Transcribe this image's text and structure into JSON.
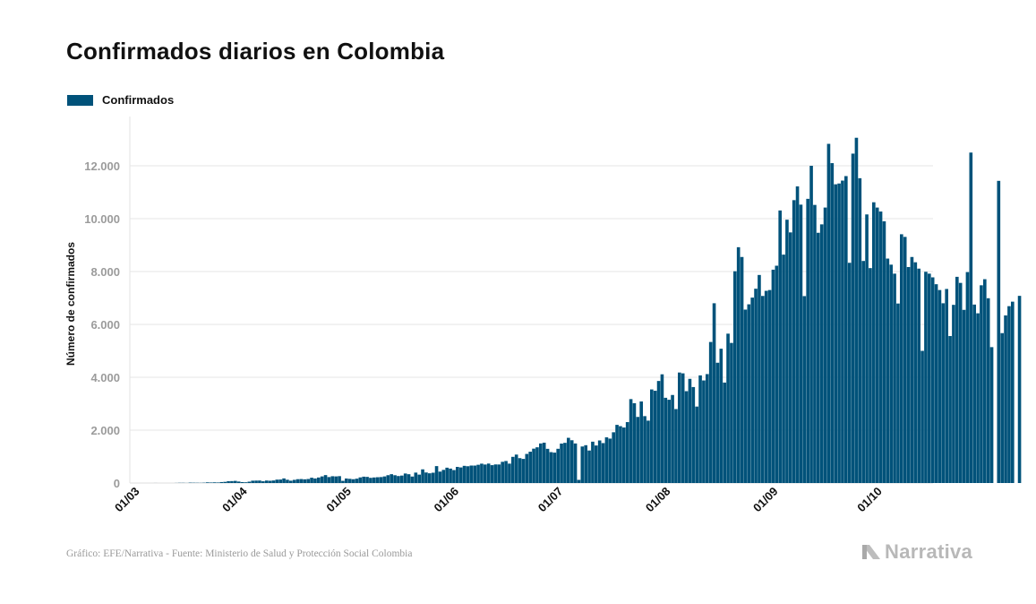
{
  "title": "Confirmados diarios en Colombia",
  "legend_label": "Confirmados",
  "footer": "Gráfico: EFE/Narrativa - Fuente: Ministerio de Salud y Protección Social Colombia",
  "brand": "Narrativa",
  "colors": {
    "bar": "#00527a",
    "grid": "#e6e6e6",
    "tick": "#9b9b9b",
    "text": "#111111"
  },
  "chart_data": {
    "type": "bar",
    "ylabel": "Número de confirmados",
    "xlabel": "",
    "ylim": [
      0,
      13500
    ],
    "y_ticks": [
      0,
      2000,
      4000,
      6000,
      8000,
      10000,
      12000
    ],
    "y_tick_labels": [
      "0",
      "2.000",
      "4.000",
      "6.000",
      "8.000",
      "10.000",
      "12.000"
    ],
    "x_ticks": [
      "01/03",
      "01/04",
      "01/05",
      "01/06",
      "01/07",
      "01/08",
      "01/09",
      "01/10"
    ],
    "series": [
      {
        "name": "Confirmados",
        "start_date": "2020-03-06",
        "values": [
          1,
          0,
          0,
          0,
          0,
          0,
          3,
          7,
          7,
          3,
          14,
          11,
          9,
          7,
          12,
          25,
          19,
          25,
          20,
          36,
          44,
          68,
          73,
          81,
          56,
          35,
          28,
          51,
          88,
          92,
          94,
          66,
          94,
          85,
          96,
          128,
          132,
          174,
          124,
          88,
          120,
          145,
          150,
          140,
          152,
          200,
          173,
          208,
          250,
          300,
          225,
          257,
          250,
          260,
          83,
          171,
          158,
          144,
          164,
          212,
          240,
          232,
          196,
          210,
          219,
          225,
          249,
          296,
          334,
          295,
          264,
          282,
          360,
          333,
          245,
          394,
          318,
          517,
          399,
          368,
          390,
          640,
          432,
          497,
          580,
          546,
          490,
          610,
          590,
          650,
          635,
          661,
          660,
          690,
          732,
          700,
          736,
          676,
          703,
          701,
          802,
          833,
          734,
          990,
          1076,
          941,
          912,
          1100,
          1185,
          1300,
          1351,
          1496,
          1526,
          1293,
          1168,
          1150,
          1295,
          1492,
          1520,
          1710,
          1618,
          1496,
          119,
          1382,
          1430,
          1230,
          1564,
          1420,
          1610,
          1510,
          1728,
          1680,
          1920,
          2200,
          2150,
          2100,
          2304,
          3174,
          3020,
          2500,
          3085,
          2530,
          2360,
          3540,
          3490,
          3860,
          4112,
          3224,
          3150,
          3330,
          2798,
          4180,
          4149,
          3474,
          3940,
          3630,
          2892,
          4072,
          3880,
          4120,
          5335,
          6800,
          4550,
          5080,
          3800,
          5650,
          5300,
          8010,
          8920,
          8550,
          6560,
          6760,
          7014,
          7350,
          7870,
          7076,
          7270,
          7300,
          8070,
          8220,
          10310,
          8640,
          9960,
          9480,
          10700,
          11220,
          10530,
          7070,
          10750,
          12000,
          10520,
          9466,
          9784,
          10420,
          12830,
          12100,
          11300,
          11330,
          11440,
          11610,
          8330,
          12460,
          13060,
          11530,
          8400,
          10160,
          8130,
          10620,
          10420,
          10270,
          9900,
          8490,
          8260,
          7920,
          6790,
          9410,
          9310,
          8170,
          8550,
          8350,
          8110,
          5000,
          7990,
          7920,
          7780,
          7520,
          7300,
          6800,
          7340,
          5560,
          6740,
          7800,
          7570,
          6550,
          7980,
          12500,
          6750,
          6420,
          7480,
          7710,
          6990,
          5140,
          0,
          11430,
          5670,
          6340,
          6690,
          6860,
          0,
          7080
        ]
      }
    ]
  }
}
